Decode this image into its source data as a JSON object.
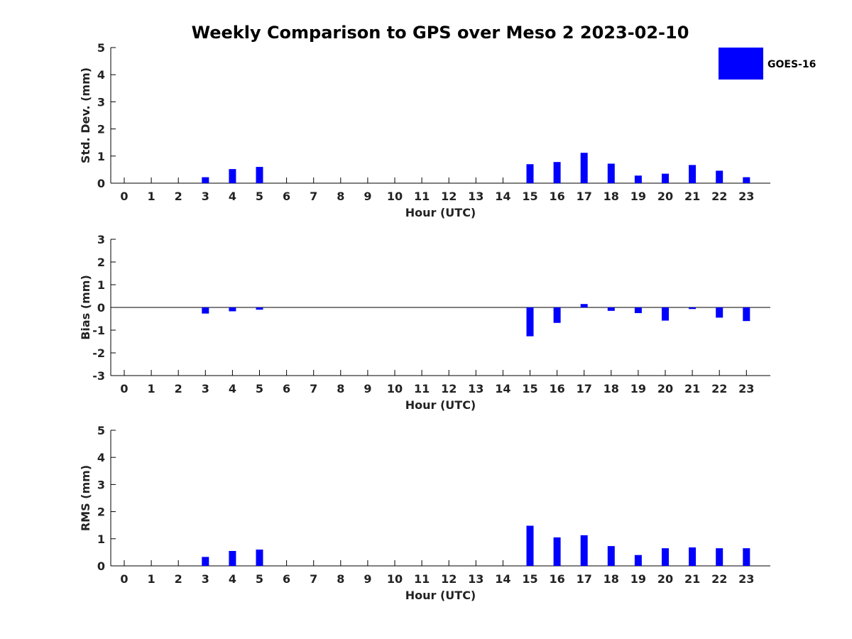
{
  "chart_data": {
    "title": "Weekly Comparison to GPS over Meso 2 2023-02-10",
    "type": "bar",
    "legend": {
      "position": "top-right",
      "entries": [
        "GOES-16"
      ]
    },
    "bar_color": "#0000ff",
    "categories": [
      "0",
      "1",
      "2",
      "3",
      "4",
      "5",
      "6",
      "7",
      "8",
      "9",
      "10",
      "11",
      "12",
      "13",
      "14",
      "15",
      "16",
      "17",
      "18",
      "19",
      "20",
      "21",
      "22",
      "23"
    ],
    "panels": [
      {
        "ylabel": "Std. Dev. (mm)",
        "xlabel": "Hour (UTC)",
        "ylim": [
          0,
          5
        ],
        "yticks": [
          "0",
          "1",
          "2",
          "3",
          "4",
          "5"
        ],
        "zero_line": false,
        "series": [
          {
            "name": "GOES-16",
            "values": [
              null,
              null,
              null,
              0.22,
              0.52,
              0.6,
              null,
              null,
              null,
              null,
              null,
              null,
              null,
              null,
              null,
              0.7,
              0.78,
              1.12,
              0.72,
              0.28,
              0.35,
              0.67,
              0.46,
              0.22
            ]
          }
        ]
      },
      {
        "ylabel": "Bias (mm)",
        "xlabel": "Hour (UTC)",
        "ylim": [
          -3,
          3
        ],
        "yticks": [
          "-3",
          "-2",
          "-1",
          "0",
          "1",
          "2",
          "3"
        ],
        "zero_line": true,
        "series": [
          {
            "name": "GOES-16",
            "values": [
              null,
              null,
              null,
              -0.27,
              -0.17,
              -0.1,
              null,
              null,
              null,
              null,
              null,
              null,
              null,
              null,
              null,
              -1.27,
              -0.68,
              0.15,
              -0.15,
              -0.25,
              -0.58,
              -0.07,
              -0.45,
              -0.6
            ]
          }
        ]
      },
      {
        "ylabel": "RMS (mm)",
        "xlabel": "Hour (UTC)",
        "ylim": [
          0,
          5
        ],
        "yticks": [
          "0",
          "1",
          "2",
          "3",
          "4",
          "5"
        ],
        "zero_line": false,
        "series": [
          {
            "name": "GOES-16",
            "values": [
              null,
              null,
              null,
              0.33,
              0.55,
              0.6,
              null,
              null,
              null,
              null,
              null,
              null,
              null,
              null,
              null,
              1.48,
              1.05,
              1.13,
              0.73,
              0.4,
              0.65,
              0.68,
              0.65,
              0.65
            ]
          }
        ]
      }
    ]
  }
}
